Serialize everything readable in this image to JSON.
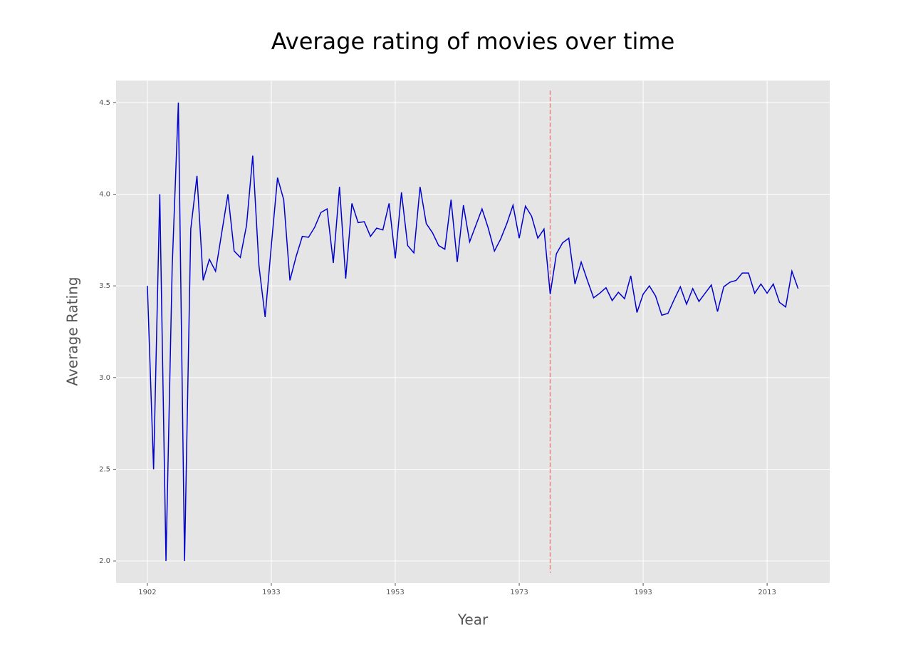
{
  "chart_data": {
    "type": "line",
    "title": "Average rating of movies over time",
    "x_label": "Year",
    "y_label": "Average Rating",
    "categories": [
      "1902",
      null,
      null,
      null,
      null,
      null,
      null,
      null,
      null,
      null,
      null,
      null,
      null,
      null,
      null,
      null,
      null,
      null,
      null,
      null,
      "1933",
      null,
      null,
      null,
      null,
      null,
      null,
      null,
      null,
      null,
      null,
      null,
      null,
      null,
      null,
      null,
      null,
      null,
      null,
      null,
      "1953",
      null,
      null,
      null,
      null,
      null,
      null,
      null,
      null,
      null,
      null,
      null,
      null,
      null,
      null,
      null,
      null,
      null,
      null,
      null,
      "1973",
      null,
      null,
      null,
      null,
      null,
      null,
      null,
      null,
      null,
      null,
      null,
      null,
      null,
      null,
      null,
      null,
      null,
      null,
      null,
      "1993",
      null,
      null,
      null,
      null,
      null,
      null,
      null,
      null,
      null,
      null,
      null,
      null,
      null,
      null,
      null,
      null,
      null,
      null,
      null,
      "2013",
      null,
      null,
      null,
      null,
      null
    ],
    "series": [
      {
        "name": "Average Rating",
        "color": "#0000cd",
        "values": [
          3.5,
          2.5,
          4.0,
          2.0,
          3.6,
          4.5,
          2.0,
          3.81,
          4.1,
          3.53,
          3.645,
          3.58,
          3.79,
          4.0,
          3.69,
          3.655,
          3.83,
          4.21,
          3.61,
          3.33,
          3.72,
          4.09,
          3.97,
          3.53,
          3.66,
          3.77,
          3.765,
          3.82,
          3.9,
          3.92,
          3.625,
          4.04,
          3.54,
          3.95,
          3.845,
          3.85,
          3.77,
          3.815,
          3.805,
          3.95,
          3.65,
          4.01,
          3.72,
          3.68,
          4.04,
          3.84,
          3.79,
          3.72,
          3.7,
          3.97,
          3.63,
          3.94,
          3.74,
          3.83,
          3.92,
          3.815,
          3.69,
          3.755,
          3.84,
          3.94,
          3.76,
          3.935,
          3.88,
          3.76,
          3.81,
          3.455,
          3.675,
          3.735,
          3.76,
          3.51,
          3.63,
          3.53,
          3.435,
          3.46,
          3.49,
          3.42,
          3.465,
          3.43,
          3.555,
          3.355,
          3.455,
          3.5,
          3.445,
          3.34,
          3.35,
          3.425,
          3.495,
          3.4,
          3.485,
          3.415,
          3.46,
          3.505,
          3.36,
          3.495,
          3.52,
          3.53,
          3.57,
          3.57,
          3.46,
          3.51,
          3.46,
          3.51,
          3.41,
          3.385,
          3.58,
          3.485
        ]
      }
    ],
    "vline": {
      "index": 65,
      "color": "#f08080"
    },
    "xlim": [
      -5.05,
      110.1
    ],
    "ylim": [
      1.88,
      4.62
    ],
    "yticks": [
      {
        "value": 2,
        "label": "2.0"
      },
      {
        "value": 2.5,
        "label": "2.5"
      },
      {
        "value": 3,
        "label": "3.0"
      },
      {
        "value": 3.5,
        "label": "3.5"
      },
      {
        "value": 4,
        "label": "4.0"
      },
      {
        "value": 4.5,
        "label": "4.5"
      }
    ],
    "grid": true
  }
}
